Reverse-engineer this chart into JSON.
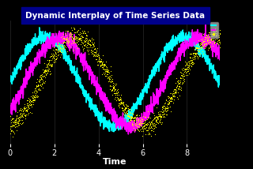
{
  "title": "Dynamic Interplay of Time Series Data",
  "title_color": "white",
  "title_bg": "#00008B",
  "xlabel": "Time",
  "xlabel_color": "white",
  "bg_color": "black",
  "ax_bg_color": "black",
  "grid_color": "#2a2a2a",
  "tick_color": "white",
  "xlim": [
    0,
    9.5
  ],
  "ylim": [
    -2.5,
    2.5
  ],
  "xticks": [
    0,
    2,
    4,
    6,
    8
  ],
  "series": [
    {
      "color": "cyan",
      "lw": 1.0,
      "noise": 0.12,
      "amp": 1.8,
      "phase": 0.0,
      "label": ""
    },
    {
      "color": "magenta",
      "lw": 1.0,
      "noise": 0.15,
      "amp": 1.8,
      "phase": 0.7,
      "label": ""
    },
    {
      "color": "yellow",
      "lw": 0.0,
      "noise": 0.18,
      "amp": 1.8,
      "phase": 1.4,
      "label": "",
      "marker": "."
    }
  ],
  "n_points": 1500,
  "t_start": 0.0,
  "t_end": 9.5,
  "legend_bg": "#aaaaaa",
  "legend_loc": "upper right"
}
